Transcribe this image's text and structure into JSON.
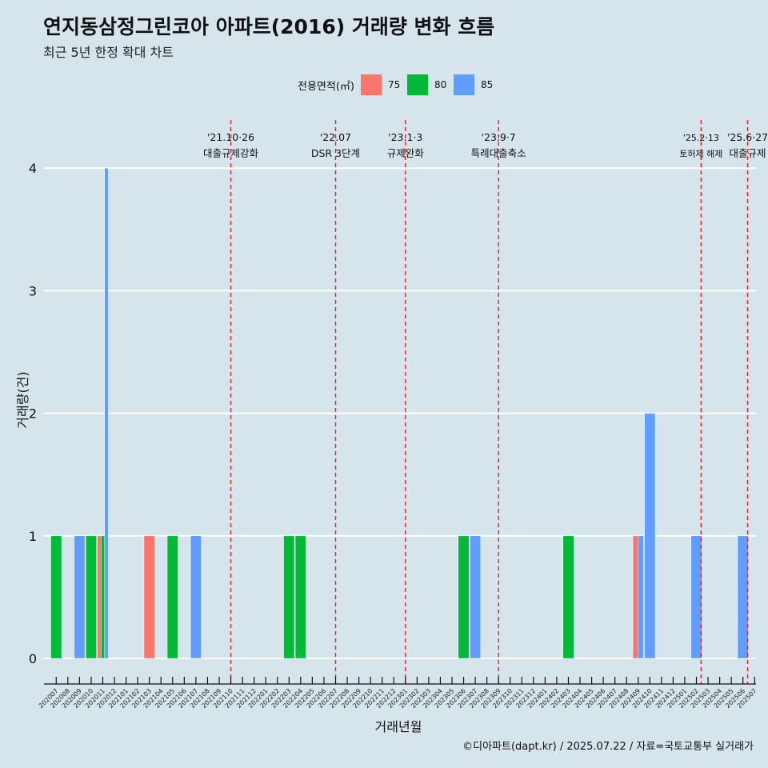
{
  "title": "연지동삼정그린코아 아파트(2016) 거래량 변화 흐름",
  "subtitle": "최근 5년 한정 확대 차트",
  "caption": "©디아파트(dapt.kr) / 2025.07.22 / 자료=국토교통부 실거래가",
  "legend": {
    "title": "전용면적(㎡)",
    "items": [
      {
        "label": "75",
        "color": "#f8766d"
      },
      {
        "label": "80",
        "color": "#00ba38"
      },
      {
        "label": "85",
        "color": "#619cff"
      }
    ]
  },
  "chart_data": {
    "type": "bar",
    "xlabel": "거래년월",
    "ylabel": "거래량(건)",
    "ylim": [
      0,
      4
    ],
    "yticks": [
      0,
      1,
      2,
      3,
      4
    ],
    "grid": true,
    "legend_position": "top",
    "categories": [
      "202007",
      "202008",
      "202009",
      "202010",
      "202011",
      "202012",
      "202101",
      "202102",
      "202103",
      "202104",
      "202105",
      "202106",
      "202107",
      "202108",
      "202109",
      "202110",
      "202111",
      "202112",
      "202201",
      "202202",
      "202203",
      "202204",
      "202205",
      "202206",
      "202207",
      "202208",
      "202209",
      "202210",
      "202211",
      "202212",
      "202301",
      "202302",
      "202303",
      "202304",
      "202305",
      "202306",
      "202307",
      "202308",
      "202309",
      "202310",
      "202311",
      "202312",
      "202401",
      "202402",
      "202403",
      "202404",
      "202405",
      "202406",
      "202407",
      "202408",
      "202409",
      "202410",
      "202411",
      "202412",
      "202501",
      "202502",
      "202503",
      "202504",
      "202505",
      "202506",
      "202507"
    ],
    "series": [
      {
        "name": "75",
        "color": "#f8766d",
        "values": [
          0,
          0,
          0,
          0,
          1,
          0,
          0,
          0,
          1,
          0,
          0,
          0,
          0,
          0,
          0,
          0,
          0,
          0,
          0,
          0,
          0,
          0,
          0,
          0,
          0,
          0,
          0,
          0,
          0,
          0,
          0,
          0,
          0,
          0,
          0,
          0,
          0,
          0,
          0,
          0,
          0,
          0,
          0,
          0,
          0,
          0,
          0,
          0,
          0,
          0,
          1,
          0,
          0,
          0,
          0,
          0,
          0,
          0,
          0,
          0,
          0
        ]
      },
      {
        "name": "80",
        "color": "#00ba38",
        "values": [
          1,
          0,
          0,
          1,
          1,
          0,
          0,
          0,
          0,
          0,
          1,
          0,
          0,
          0,
          0,
          0,
          0,
          0,
          0,
          0,
          1,
          1,
          0,
          0,
          0,
          0,
          0,
          0,
          0,
          0,
          0,
          0,
          0,
          0,
          0,
          1,
          0,
          0,
          0,
          0,
          0,
          0,
          0,
          0,
          1,
          0,
          0,
          0,
          0,
          0,
          0,
          0,
          0,
          0,
          0,
          0,
          0,
          0,
          0,
          0,
          0
        ]
      },
      {
        "name": "85",
        "color": "#619cff",
        "values": [
          0,
          0,
          1,
          0,
          4,
          0,
          0,
          0,
          0,
          0,
          0,
          0,
          1,
          0,
          0,
          0,
          0,
          0,
          0,
          0,
          0,
          0,
          0,
          0,
          0,
          0,
          0,
          0,
          0,
          0,
          0,
          0,
          0,
          0,
          0,
          0,
          1,
          0,
          0,
          0,
          0,
          0,
          0,
          0,
          0,
          0,
          0,
          0,
          0,
          0,
          1,
          2,
          0,
          0,
          0,
          1,
          0,
          0,
          0,
          1,
          0
        ]
      }
    ],
    "annotations": [
      {
        "date_label": "'21.10·26",
        "text": "대출규제강화",
        "x": "202110",
        "offset": 0.0
      },
      {
        "date_label": "'22.07",
        "text": "DSR 3단계",
        "x": "202207",
        "offset": 0.0
      },
      {
        "date_label": "'23.1·3",
        "text": "규제완화",
        "x": "202301",
        "offset": 0.0
      },
      {
        "date_label": "'23.9·7",
        "text": "특례대출축소",
        "x": "202309",
        "offset": 0.0
      },
      {
        "date_label": "'25.2·13",
        "text": "토허제 해제",
        "x": "202502",
        "offset": 0.4,
        "small": true
      },
      {
        "date_label": "'25.6·27",
        "text": "대출규제",
        "x": "202506",
        "offset": 0.4
      }
    ]
  }
}
